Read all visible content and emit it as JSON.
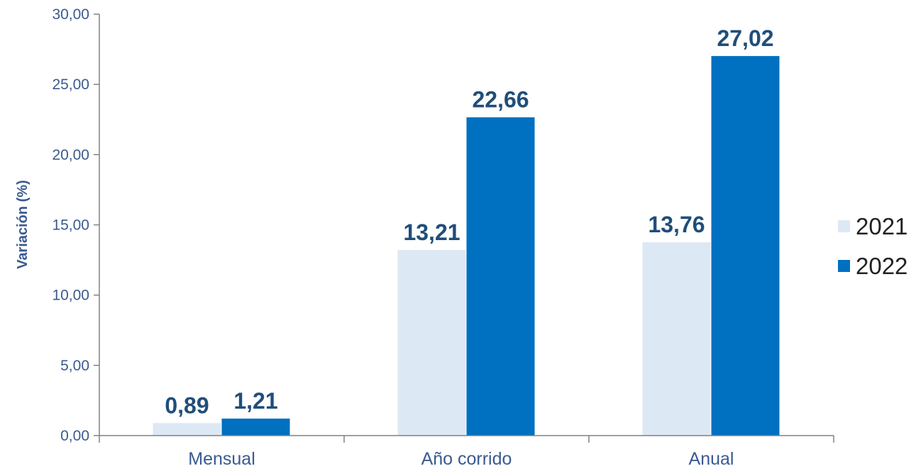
{
  "chart_data": {
    "type": "bar",
    "ylabel": "Variación (%)",
    "xlabel": "",
    "categories": [
      "Mensual",
      "Año corrido",
      "Anual"
    ],
    "series": [
      {
        "name": "2021",
        "values": [
          0.89,
          13.21,
          13.76
        ],
        "labels": [
          "0,89",
          "13,21",
          "13,76"
        ],
        "color": "#dde8f5"
      },
      {
        "name": "2022",
        "values": [
          1.21,
          22.66,
          27.02
        ],
        "labels": [
          "1,21",
          "22,66",
          "27,02"
        ],
        "color": "#0070c0"
      }
    ],
    "ylim": [
      0,
      30
    ],
    "yticks": [
      0,
      5,
      10,
      15,
      20,
      25,
      30
    ],
    "ytick_labels": [
      "0,00",
      "5,00",
      "10,00",
      "15,00",
      "20,00",
      "25,00",
      "30,00"
    ],
    "grid": false,
    "legend_position": "right"
  }
}
